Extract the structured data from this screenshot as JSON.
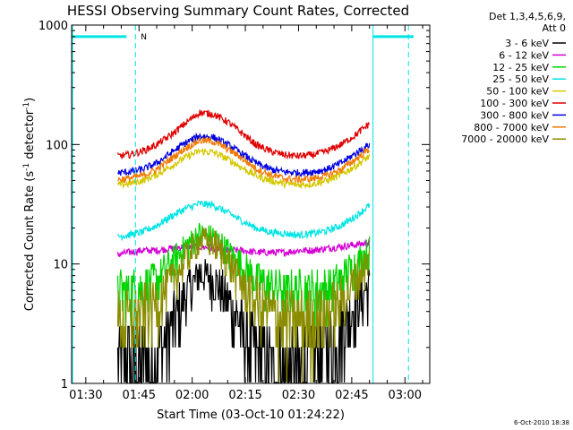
{
  "chart_data": {
    "type": "line",
    "title": "HESSI Observing Summary Count Rates, Corrected",
    "xlabel": "Start Time (03-Oct-10 01:24:22)",
    "ylabel_main": "Corrected Count Rate (s",
    "ylabel_sup1": "-1",
    "ylabel_mid": " detector",
    "ylabel_sup2": "-1",
    "ylabel_end": ")",
    "yscale": "log",
    "xlim": [
      86,
      187
    ],
    "ylim": [
      1,
      1000
    ],
    "x_ticks": [
      {
        "value": 90,
        "label": "01:30"
      },
      {
        "value": 105,
        "label": "01:45"
      },
      {
        "value": 120,
        "label": "02:00"
      },
      {
        "value": 135,
        "label": "02:15"
      },
      {
        "value": 150,
        "label": "02:30"
      },
      {
        "value": 165,
        "label": "02:45"
      },
      {
        "value": 180,
        "label": "03:00"
      }
    ],
    "y_ticks": [
      {
        "value": 1,
        "label": "1"
      },
      {
        "value": 10,
        "label": "10"
      },
      {
        "value": 100,
        "label": "100"
      },
      {
        "value": 1000,
        "label": "1000"
      }
    ],
    "legend_header": [
      "Det 1,3,4,5,6,9,",
      "Att 0"
    ],
    "timestamp": "6-Oct-2010 18:38",
    "night_marker_label": "N",
    "night_intervals": [
      [
        86,
        104
      ],
      [
        171,
        187
      ]
    ],
    "series": [
      {
        "name": "3 - 6 keV",
        "color": "#000000",
        "start": 99,
        "end": 170,
        "x": [
          99,
          102,
          106,
          110,
          114,
          118,
          122,
          126,
          130,
          134,
          138,
          142,
          146,
          150,
          154,
          158,
          162,
          166,
          170
        ],
        "y": [
          1.5,
          1.5,
          1.5,
          1.8,
          3,
          5.5,
          8.5,
          7.5,
          5,
          3,
          1.8,
          1.4,
          1.2,
          1.3,
          1.6,
          2,
          3,
          4.5,
          6.5
        ]
      },
      {
        "name": "6 - 12 keV",
        "color": "#d400d4",
        "start": 99,
        "end": 170,
        "x": [
          99,
          102,
          106,
          110,
          114,
          118,
          122,
          126,
          130,
          134,
          138,
          142,
          146,
          150,
          154,
          158,
          162,
          166,
          170
        ],
        "y": [
          12,
          12.5,
          13,
          13,
          13.5,
          14,
          14,
          13.5,
          13,
          13,
          12.5,
          12.5,
          12.5,
          13,
          13,
          13.5,
          14,
          14.5,
          15
        ]
      },
      {
        "name": "12 - 25 keV",
        "color": "#00d400",
        "start": 99,
        "end": 170,
        "x": [
          99,
          102,
          106,
          110,
          114,
          118,
          122,
          126,
          130,
          134,
          138,
          142,
          146,
          150,
          154,
          158,
          162,
          166,
          170
        ],
        "y": [
          6,
          6,
          6.5,
          7.5,
          10,
          14,
          18,
          17,
          13,
          9.5,
          7.5,
          6.5,
          6,
          6,
          6,
          6.3,
          7.5,
          10,
          13
        ]
      },
      {
        "name": "25 - 50 keV",
        "color": "#00e4e4",
        "start": 99,
        "end": 170,
        "x": [
          99,
          102,
          106,
          110,
          114,
          118,
          122,
          126,
          130,
          134,
          138,
          142,
          146,
          150,
          154,
          158,
          162,
          166,
          170
        ],
        "y": [
          17,
          17.5,
          18.5,
          21,
          25,
          29,
          32,
          31,
          27,
          23,
          20,
          18.5,
          18,
          17.5,
          18,
          19,
          21,
          25,
          31
        ]
      },
      {
        "name": "50 - 100 keV",
        "color": "#d4c800",
        "start": 99,
        "end": 170,
        "x": [
          99,
          102,
          106,
          110,
          114,
          118,
          122,
          126,
          130,
          134,
          138,
          142,
          146,
          150,
          154,
          158,
          162,
          166,
          170
        ],
        "y": [
          46,
          47,
          50,
          56,
          66,
          78,
          88,
          86,
          76,
          64,
          55,
          50,
          47,
          46,
          47,
          50,
          56,
          66,
          80
        ]
      },
      {
        "name": "100 - 300 keV",
        "color": "#e00000",
        "start": 99,
        "end": 170,
        "x": [
          99,
          102,
          106,
          110,
          114,
          118,
          122,
          126,
          130,
          134,
          138,
          142,
          146,
          150,
          154,
          158,
          162,
          166,
          170
        ],
        "y": [
          80,
          82,
          88,
          100,
          120,
          150,
          185,
          180,
          155,
          125,
          100,
          88,
          82,
          80,
          82,
          88,
          100,
          120,
          150
        ]
      },
      {
        "name": "300 - 800 keV",
        "color": "#0000e0",
        "start": 99,
        "end": 170,
        "x": [
          99,
          102,
          106,
          110,
          114,
          118,
          122,
          126,
          130,
          134,
          138,
          142,
          146,
          150,
          154,
          158,
          162,
          166,
          170
        ],
        "y": [
          58,
          59,
          62,
          70,
          85,
          103,
          118,
          115,
          100,
          84,
          70,
          62,
          59,
          58,
          59,
          62,
          70,
          84,
          100
        ]
      },
      {
        "name": "800 - 7000 keV",
        "color": "#f07800",
        "start": 99,
        "end": 170,
        "x": [
          99,
          102,
          106,
          110,
          114,
          118,
          122,
          126,
          130,
          134,
          138,
          142,
          146,
          150,
          154,
          158,
          162,
          166,
          170
        ],
        "y": [
          51,
          52,
          55,
          62,
          76,
          93,
          108,
          106,
          92,
          77,
          63,
          56,
          52,
          51,
          52,
          55,
          62,
          75,
          92
        ]
      },
      {
        "name": "7000 - 20000 keV",
        "color": "#8c8c00",
        "start": 99,
        "end": 170,
        "x": [
          99,
          102,
          106,
          110,
          114,
          118,
          122,
          126,
          130,
          134,
          138,
          142,
          146,
          150,
          154,
          158,
          162,
          166,
          170
        ],
        "y": [
          3.5,
          3.6,
          4,
          5,
          7,
          11,
          16,
          15,
          11,
          7,
          5,
          4,
          3.6,
          3.5,
          3.6,
          4,
          5,
          7.5,
          11
        ]
      }
    ]
  }
}
